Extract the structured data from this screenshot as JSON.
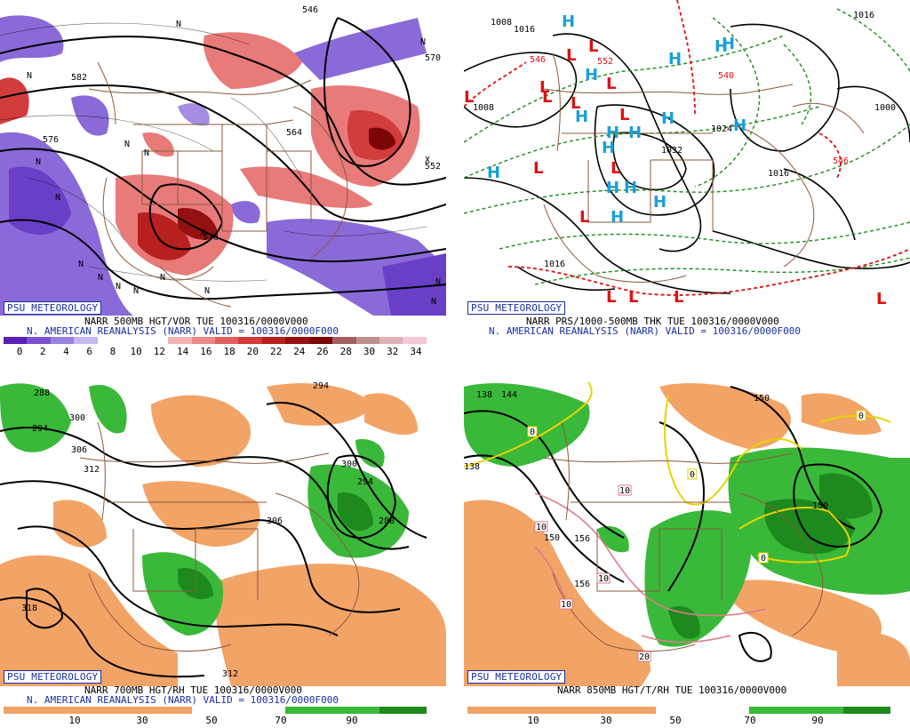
{
  "panels": {
    "p500": {
      "badge": "PSU METEOROLOGY",
      "caption1": "NARR 500MB HGT/VOR TUE 100316/0000V000",
      "caption2": "N. AMERICAN REANALYSIS (NARR) VALID = 100316/0000F000",
      "scale_labels": [
        "0",
        "2",
        "4",
        "6",
        "8",
        "10",
        "12",
        "14",
        "16",
        "18",
        "20",
        "22",
        "24",
        "26",
        "28",
        "30",
        "32",
        "34"
      ],
      "scale_colors": [
        "#5a1fb5",
        "#7b4fd0",
        "#9a82e0",
        "#c7b8ef",
        "#ffffff",
        "#ffffff",
        "#ffffff",
        "#f4b3b3",
        "#ec8a8a",
        "#e06060",
        "#d23c3c",
        "#b82020",
        "#951010",
        "#7a0606",
        "#a06060",
        "#c09090",
        "#e0b0b8",
        "#f7c8d8"
      ],
      "contour_labels": [
        "546",
        "552",
        "570",
        "576",
        "564",
        "576",
        "582"
      ]
    },
    "pthk": {
      "badge": "PSU METEOROLOGY",
      "caption1": "NARR PRS/1000-500MB THK TUE 100316/0000V000",
      "caption2": "N. AMERICAN REANALYSIS (NARR) VALID = 100316/0000F000",
      "pressure_labels": [
        "1008",
        "1016",
        "1008",
        "1032",
        "1024",
        "1016",
        "1016",
        "1000",
        "1016",
        "546",
        "540",
        "546",
        "552"
      ]
    },
    "p700": {
      "badge": "PSU METEOROLOGY",
      "caption1": "NARR 700MB HGT/RH TUE 100316/0000V000",
      "caption2": "N. AMERICAN REANALYSIS (NARR) VALID = 100316/0000F000",
      "scale_labels": [
        "10",
        "30",
        "50",
        "70",
        "90"
      ],
      "contour_labels": [
        "288",
        "294",
        "294",
        "300",
        "306",
        "312",
        "306",
        "300",
        "294",
        "288",
        "318",
        "312"
      ]
    },
    "p850": {
      "badge": "PSU METEOROLOGY",
      "caption1": "NARR 850MB HGT/T/RH TUE 100316/0000V000",
      "scale_labels": [
        "10",
        "30",
        "50",
        "70",
        "90"
      ],
      "contour_labels": [
        "138",
        "144",
        "150",
        "156",
        "150",
        "156",
        "150",
        "138"
      ],
      "temp_labels": [
        "0",
        "0",
        "0",
        "0",
        "10",
        "10",
        "10",
        "10",
        "20"
      ]
    }
  },
  "colors": {
    "caption_blue": "#1a2fa0",
    "border_brown": "#8b5a3c",
    "rh_dry": "#f2a366",
    "rh_moist": "#3ab83a",
    "rh_very_moist": "#1e8a1e",
    "vort_low": "#7b4fd0",
    "vort_high": "#d23c3c",
    "high_blue": "#1aa0d8",
    "low_red": "#e01010"
  }
}
